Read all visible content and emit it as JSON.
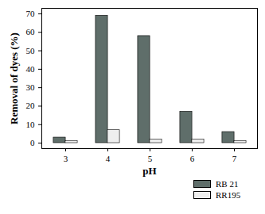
{
  "chart_data": {
    "type": "bar",
    "x_label": "pH",
    "y_label": "Removal of dyes (%)",
    "categories": [
      3,
      4,
      5,
      6,
      7
    ],
    "series": [
      {
        "name": "RB 21",
        "color": "#5f6e6a",
        "values": [
          3,
          69,
          58,
          17,
          6
        ]
      },
      {
        "name": "RR195",
        "color": "#eeeeee",
        "values": [
          1,
          7,
          2,
          2,
          1
        ]
      }
    ],
    "ylim": [
      -3,
      73
    ],
    "yticks": [
      0,
      10,
      20,
      30,
      40,
      50,
      60,
      70
    ],
    "grid": false,
    "legend": "bottom-right"
  }
}
